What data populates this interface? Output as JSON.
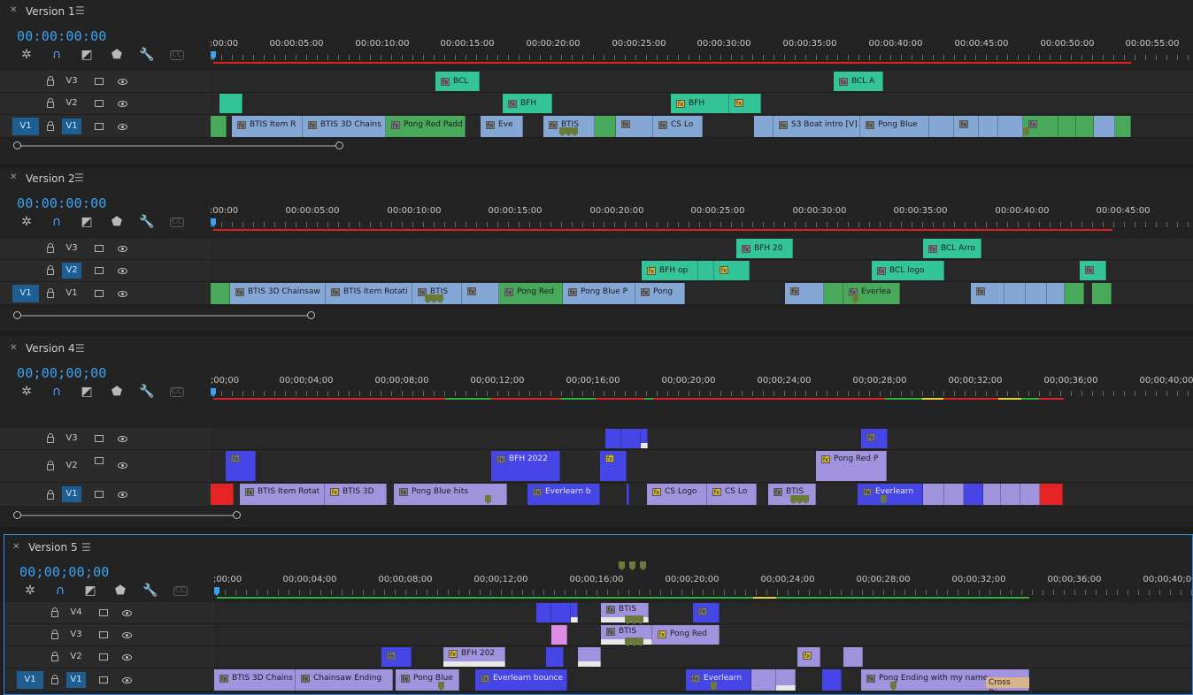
{
  "panels": [
    {
      "title": "Version 1",
      "timecode": "00:00:00:00",
      "ticks": [
        ":00:00",
        "00:00:05:00",
        "00:00:10:00",
        "00:00:15:00",
        "00:00:20:00",
        "00:00:25:00",
        "00:00:30:00",
        "00:00:35:00",
        "00:00:40:00",
        "00:00:45:00",
        "00:00:50:00",
        "00:00:55:00"
      ],
      "tracks": [
        "V3",
        "V2",
        "V1"
      ],
      "source_patch": "V1",
      "clips": {
        "v3": [
          "BCL",
          "BCL A"
        ],
        "v2": [
          "BFH",
          "BFH"
        ],
        "v1": [
          "BTIS Item R",
          "BTIS 3D Chains",
          "Pong Red Padd",
          "Eve",
          "BTIS",
          "CS Lo",
          "S3 Boat intro [V]",
          "Pong Blue"
        ]
      }
    },
    {
      "title": "Version 2",
      "timecode": "00:00:00:00",
      "ticks": [
        ":00:00",
        "00:00:05:00",
        "00:00:10:00",
        "00:00:15:00",
        "00:00:20:00",
        "00:00:25:00",
        "00:00:30:00",
        "00:00:35:00",
        "00:00:40:00",
        "00:00:45:00"
      ],
      "tracks": [
        "V3",
        "V2",
        "V1"
      ],
      "source_patch": "V1",
      "clips": {
        "v3": [
          "BFH 20",
          "BCL Arro"
        ],
        "v2": [
          "BFH op",
          "BCL logo"
        ],
        "v1": [
          "BTIS 3D Chainsaw",
          "BTIS Item Rotati",
          "BTIS",
          "Pong Red",
          "Pong Blue P",
          "Pong",
          "Everlea"
        ]
      }
    },
    {
      "title": "Version 4",
      "timecode": "00;00;00;00",
      "ticks": [
        ";00;00",
        "00;00;04;00",
        "00;00;08;00",
        "00;00;12;00",
        "00;00;16;00",
        "00;00;20;00",
        "00;00;24;00",
        "00;00;28;00",
        "00;00;32;00",
        "00;00;36;00",
        "00;00;40;00"
      ],
      "tracks": [
        "V3",
        "V2",
        "V1"
      ],
      "source_patch": "",
      "clips": {
        "v2": [
          "BFH 2022",
          "Pong Red P"
        ],
        "v1": [
          "BTIS Item Rotat",
          "BTIS 3D",
          "Pong Blue hits",
          "Everlearn b",
          "CS Logo",
          "CS Lo",
          "BTIS",
          "Everlearn"
        ]
      }
    },
    {
      "title": "Version 5",
      "timecode": "00;00;00;00",
      "ticks": [
        ";00;00",
        "00;00;04;00",
        "00;00;08;00",
        "00;00;12;00",
        "00;00;16;00",
        "00;00;20;00",
        "00;00;24;00",
        "00;00;28;00",
        "00;00;32;00",
        "00;00;36;00",
        "00;00;40;00"
      ],
      "tracks": [
        "V4",
        "V3",
        "V2",
        "V1"
      ],
      "source_patch": "V1",
      "clips": {
        "v4": [
          "BTIS"
        ],
        "v3": [
          "BTIS",
          "Pong Red"
        ],
        "v2": [
          "BFH 202"
        ],
        "v1": [
          "BTIS 3D Chains",
          "Chainsaw Ending",
          "Pong Blue",
          "Everlearn bounce",
          "Everlearn",
          "Pong Ending with my name"
        ],
        "transition": "Cross Disso"
      }
    }
  ],
  "colors": {
    "timecode": "#3aa3f2",
    "playhead": "#3aa3f2",
    "render_red": "#e02020",
    "render_green": "#2fae3a",
    "render_yellow": "#e6d23a",
    "green_clip": "#3fc08f",
    "blue_clip": "#84a7d6",
    "royal_clip": "#4646e6",
    "lavender_clip": "#a193de"
  },
  "icons": [
    "close-icon",
    "panel-menu-icon",
    "snap-icon",
    "linked-selection-icon",
    "add-marker-icon",
    "marker-icon",
    "wrench-icon",
    "captions-icon",
    "lock-icon",
    "toggle-output-icon",
    "eye-icon",
    "fx-badge-icon"
  ]
}
